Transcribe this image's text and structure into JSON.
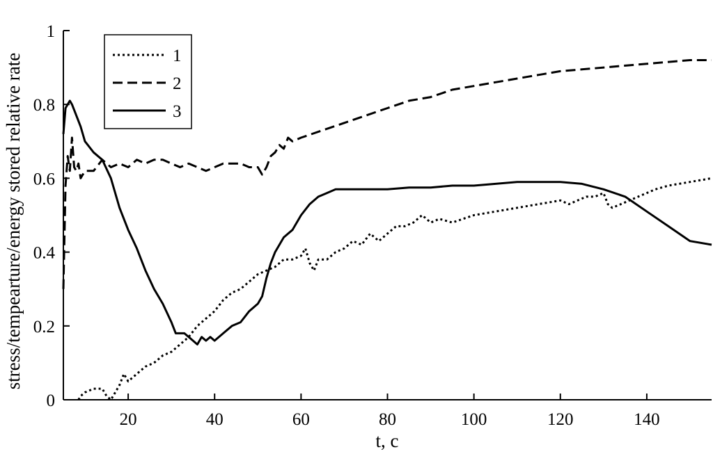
{
  "chart_data": {
    "type": "line",
    "xlabel": "t, c",
    "ylabel": "stress/tempearture/energy stored relative rate",
    "xlim": [
      5,
      155
    ],
    "ylim": [
      0,
      1
    ],
    "xticks": [
      20,
      40,
      60,
      80,
      100,
      120,
      140
    ],
    "yticks": [
      0,
      0.2,
      0.4,
      0.6,
      0.8,
      1
    ],
    "ytick_labels": [
      "0",
      "0.2",
      "0.4",
      "0.6",
      "0.8",
      "1"
    ],
    "grid": false,
    "legend_position": "top-left",
    "series": [
      {
        "name": "1",
        "dash": "dotted",
        "x": [
          8.5,
          9,
          10,
          12,
          14,
          15,
          16,
          17,
          18,
          19,
          20,
          22,
          24,
          26,
          28,
          30,
          32,
          34,
          36,
          38,
          40,
          42,
          44,
          46,
          48,
          50,
          52,
          54,
          55,
          56,
          58,
          60,
          61,
          62,
          63,
          64,
          66,
          68,
          70,
          72,
          74,
          76,
          78,
          80,
          82,
          84,
          86,
          88,
          90,
          92,
          95,
          100,
          105,
          110,
          115,
          120,
          122,
          124,
          126,
          128,
          130,
          131,
          132,
          134,
          136,
          138,
          140,
          142,
          145,
          150,
          155
        ],
        "y": [
          0,
          0.01,
          0.02,
          0.03,
          0.03,
          0.01,
          0,
          0.02,
          0.04,
          0.07,
          0.05,
          0.07,
          0.09,
          0.1,
          0.12,
          0.13,
          0.15,
          0.17,
          0.2,
          0.22,
          0.24,
          0.27,
          0.29,
          0.3,
          0.32,
          0.34,
          0.35,
          0.36,
          0.37,
          0.38,
          0.38,
          0.39,
          0.41,
          0.37,
          0.35,
          0.38,
          0.38,
          0.4,
          0.41,
          0.43,
          0.42,
          0.45,
          0.43,
          0.45,
          0.47,
          0.47,
          0.48,
          0.5,
          0.48,
          0.49,
          0.48,
          0.5,
          0.51,
          0.52,
          0.53,
          0.54,
          0.53,
          0.54,
          0.55,
          0.55,
          0.56,
          0.53,
          0.52,
          0.53,
          0.54,
          0.55,
          0.56,
          0.57,
          0.58,
          0.59,
          0.6
        ]
      },
      {
        "name": "2",
        "dash": "dashed",
        "x": [
          5,
          5.5,
          6,
          6.5,
          7,
          7.5,
          8,
          8.5,
          9,
          10,
          12,
          14,
          16,
          18,
          20,
          22,
          24,
          26,
          28,
          30,
          32,
          34,
          36,
          38,
          40,
          42,
          44,
          46,
          48,
          50,
          51,
          52,
          53,
          54,
          55,
          56,
          57,
          58,
          60,
          65,
          70,
          75,
          80,
          85,
          90,
          95,
          100,
          105,
          110,
          115,
          120,
          125,
          130,
          135,
          140,
          145,
          150,
          155
        ],
        "y": [
          0.3,
          0.58,
          0.66,
          0.62,
          0.71,
          0.63,
          0.62,
          0.64,
          0.6,
          0.62,
          0.62,
          0.65,
          0.63,
          0.64,
          0.63,
          0.65,
          0.64,
          0.65,
          0.65,
          0.64,
          0.63,
          0.64,
          0.63,
          0.62,
          0.63,
          0.64,
          0.64,
          0.64,
          0.63,
          0.63,
          0.61,
          0.63,
          0.66,
          0.67,
          0.69,
          0.68,
          0.71,
          0.7,
          0.71,
          0.73,
          0.75,
          0.77,
          0.79,
          0.81,
          0.82,
          0.84,
          0.85,
          0.86,
          0.87,
          0.88,
          0.89,
          0.895,
          0.9,
          0.905,
          0.91,
          0.915,
          0.92,
          0.92
        ]
      },
      {
        "name": "3",
        "dash": "solid",
        "x": [
          5,
          5.5,
          6,
          6.5,
          7,
          8,
          9,
          10,
          12,
          14,
          16,
          18,
          20,
          22,
          24,
          26,
          28,
          30,
          31,
          32,
          33,
          34,
          35,
          36,
          37,
          38,
          39,
          40,
          42,
          44,
          46,
          48,
          50,
          51,
          52,
          53,
          54,
          55,
          56,
          58,
          60,
          62,
          64,
          66,
          68,
          70,
          75,
          80,
          85,
          90,
          95,
          100,
          105,
          110,
          115,
          120,
          125,
          130,
          135,
          140,
          145,
          150,
          155
        ],
        "y": [
          0.72,
          0.79,
          0.8,
          0.81,
          0.8,
          0.77,
          0.74,
          0.7,
          0.67,
          0.65,
          0.6,
          0.52,
          0.46,
          0.41,
          0.35,
          0.3,
          0.26,
          0.21,
          0.18,
          0.18,
          0.18,
          0.17,
          0.16,
          0.15,
          0.17,
          0.16,
          0.17,
          0.16,
          0.18,
          0.2,
          0.21,
          0.24,
          0.26,
          0.28,
          0.33,
          0.37,
          0.4,
          0.42,
          0.44,
          0.46,
          0.5,
          0.53,
          0.55,
          0.56,
          0.57,
          0.57,
          0.57,
          0.57,
          0.575,
          0.575,
          0.58,
          0.58,
          0.585,
          0.59,
          0.59,
          0.59,
          0.585,
          0.57,
          0.55,
          0.51,
          0.47,
          0.43,
          0.42
        ]
      }
    ]
  }
}
